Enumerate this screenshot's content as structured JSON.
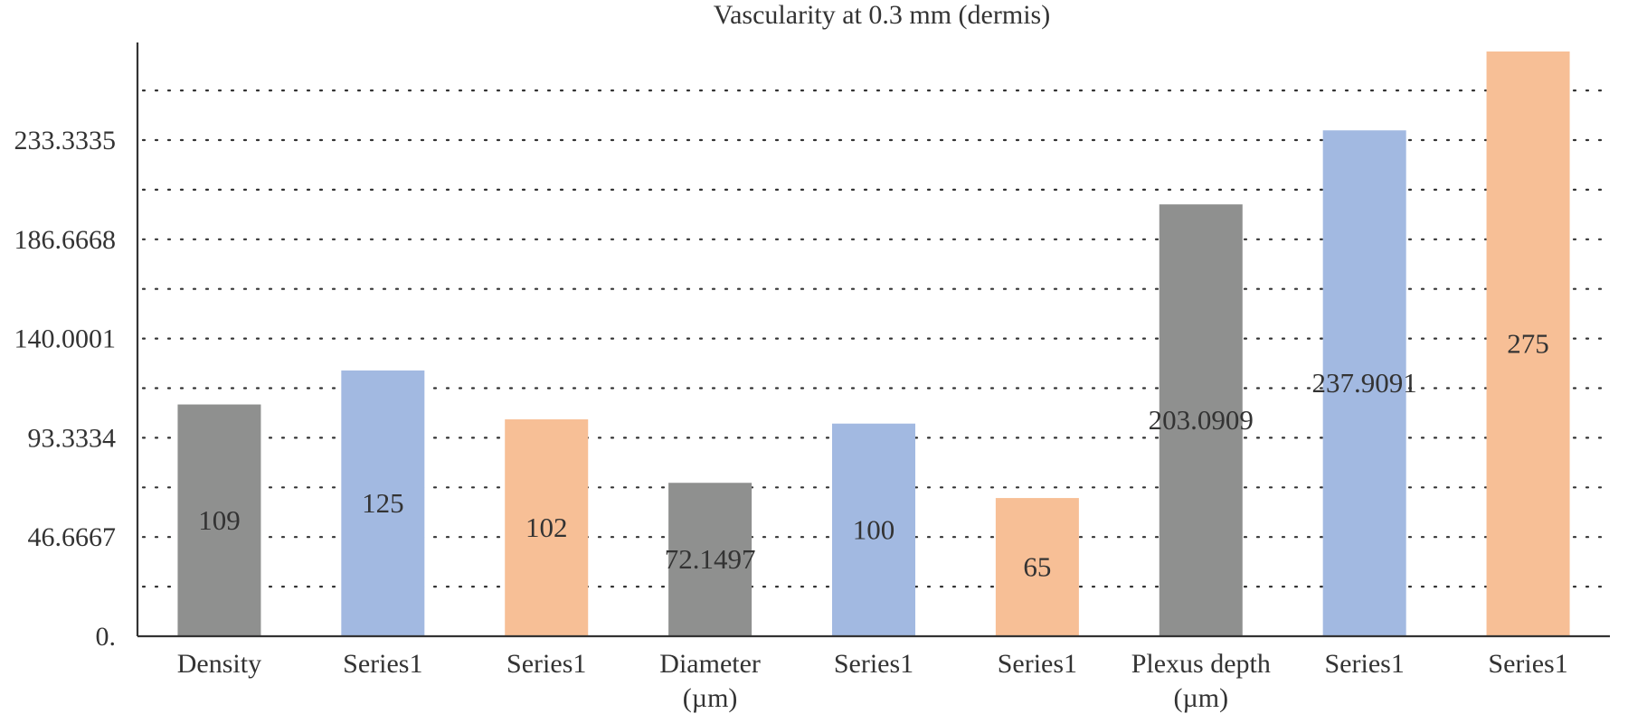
{
  "chart_data": {
    "type": "bar",
    "title": "Vascularity at 0.3 mm (dermis)",
    "xlabel": "",
    "ylabel": "",
    "ylim": [
      0,
      290
    ],
    "yticks": [
      "0.",
      "46.6667",
      "93.3334",
      "140.0001",
      "186.6668",
      "233.3335"
    ],
    "ytick_values": [
      0,
      46.6667,
      93.3334,
      140.0001,
      186.6668,
      233.3335
    ],
    "minor_grid_step": 23.33335,
    "grid": true,
    "legend": "none",
    "colors": {
      "gray": "#8f908f",
      "blue": "#a2b9e1",
      "orange": "#f7bf96"
    },
    "categories": [
      [
        "Density"
      ],
      [
        "Series1"
      ],
      [
        "Series1"
      ],
      [
        "Diameter",
        "(µm)"
      ],
      [
        "Series1"
      ],
      [
        "Series1"
      ],
      [
        "Plexus depth",
        "(µm)"
      ],
      [
        "Series1"
      ],
      [
        "Series1"
      ]
    ],
    "values": [
      109,
      125,
      102,
      72.1497,
      100,
      65,
      203.0909,
      237.9091,
      275
    ],
    "data_labels": [
      "109",
      "125",
      "102",
      "72.1497",
      "100",
      "65",
      "203.0909",
      "237.9091",
      "275"
    ],
    "bar_colors": [
      "gray",
      "blue",
      "orange",
      "gray",
      "blue",
      "orange",
      "gray",
      "blue",
      "orange"
    ]
  }
}
